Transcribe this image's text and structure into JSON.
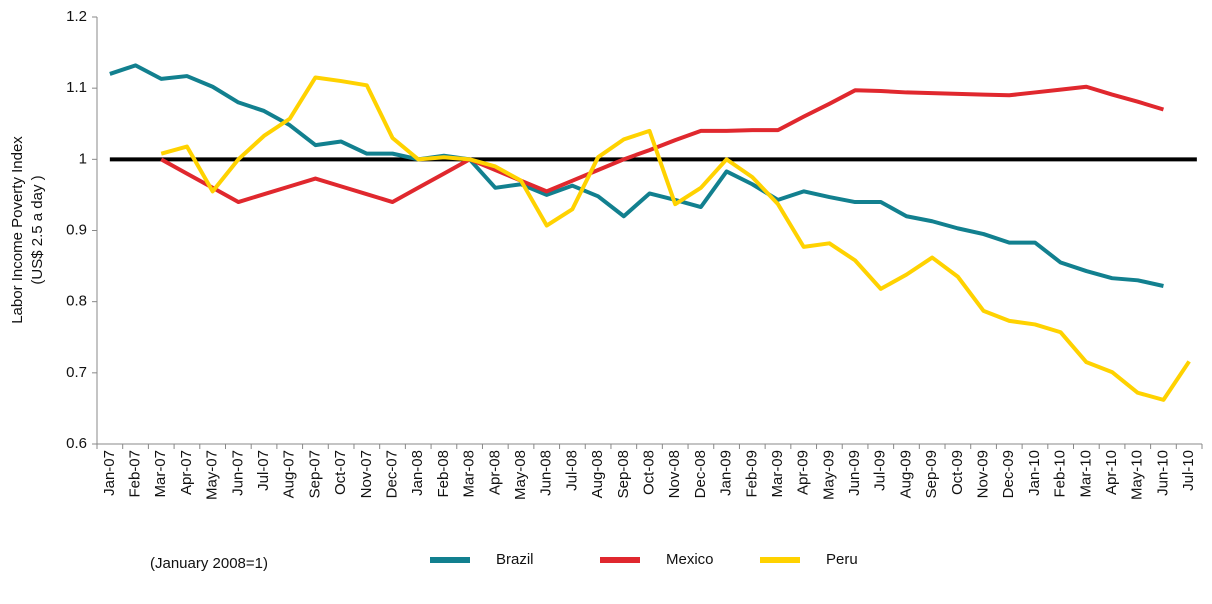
{
  "chart_data": {
    "type": "line",
    "y_label": [
      "Labor Income Poverty Index",
      "(US$ 2.5 a day )"
    ],
    "note": "(January 2008=1)",
    "categories": [
      "Jan-07",
      "Feb-07",
      "Mar-07",
      "Apr-07",
      "May-07",
      "Jun-07",
      "Jul-07",
      "Aug-07",
      "Sep-07",
      "Oct-07",
      "Nov-07",
      "Dec-07",
      "Jan-08",
      "Feb-08",
      "Mar-08",
      "Apr-08",
      "May-08",
      "Jun-08",
      "Jul-08",
      "Aug-08",
      "Sep-08",
      "Oct-08",
      "Nov-08",
      "Dec-08",
      "Jan-09",
      "Feb-09",
      "Mar-09",
      "Apr-09",
      "May-09",
      "Jun-09",
      "Jul-09",
      "Aug-09",
      "Sep-09",
      "Oct-09",
      "Nov-09",
      "Dec-09",
      "Jan-10",
      "Feb-10",
      "Mar-10",
      "Apr-10",
      "May-10",
      "Jun-10",
      "Jul-10"
    ],
    "series": [
      {
        "name": "Brazil",
        "color": "#12808f",
        "values": [
          1.12,
          1.132,
          1.113,
          1.117,
          1.102,
          1.08,
          1.068,
          1.048,
          1.02,
          1.025,
          1.008,
          1.008,
          1.0,
          1.005,
          1.0,
          0.96,
          0.965,
          0.95,
          0.963,
          0.948,
          0.92,
          0.952,
          0.943,
          0.933,
          0.983,
          0.965,
          0.943,
          0.955,
          0.947,
          0.94,
          0.94,
          0.92,
          0.913,
          0.903,
          0.895,
          0.883,
          0.883,
          0.855,
          0.843,
          0.833,
          0.83,
          0.822,
          null
        ]
      },
      {
        "name": "Mexico",
        "color": "#e0282e",
        "values": [
          null,
          null,
          1.0,
          0.98,
          0.96,
          0.94,
          0.951,
          0.962,
          0.973,
          0.962,
          0.951,
          0.94,
          0.96,
          0.98,
          1.0,
          0.985,
          0.97,
          0.955,
          0.97,
          0.985,
          1.0,
          1.013,
          1.027,
          1.04,
          1.04,
          1.041,
          1.041,
          1.06,
          1.078,
          1.097,
          1.096,
          1.094,
          1.093,
          1.092,
          1.091,
          1.09,
          1.094,
          1.098,
          1.102,
          1.091,
          1.081,
          1.07,
          null
        ]
      },
      {
        "name": "Peru",
        "color": "#ffd200",
        "values": [
          null,
          null,
          1.008,
          1.018,
          0.955,
          1.0,
          1.033,
          1.057,
          1.115,
          1.11,
          1.104,
          1.03,
          1.0,
          1.003,
          1.0,
          0.99,
          0.97,
          0.907,
          0.93,
          1.003,
          1.028,
          1.04,
          0.937,
          0.96,
          1.0,
          0.975,
          0.937,
          0.877,
          0.882,
          0.858,
          0.818,
          0.838,
          0.862,
          0.835,
          0.787,
          0.773,
          0.768,
          0.757,
          0.715,
          0.701,
          0.672,
          0.662,
          0.716
        ]
      }
    ],
    "reference_line": 1,
    "reference_color": "#000000",
    "ylim": [
      0.6,
      1.2
    ],
    "yticks": [
      0.6,
      0.7,
      0.8,
      0.9,
      1,
      1.1,
      1.2
    ],
    "grid": false,
    "legend": "bottom"
  }
}
